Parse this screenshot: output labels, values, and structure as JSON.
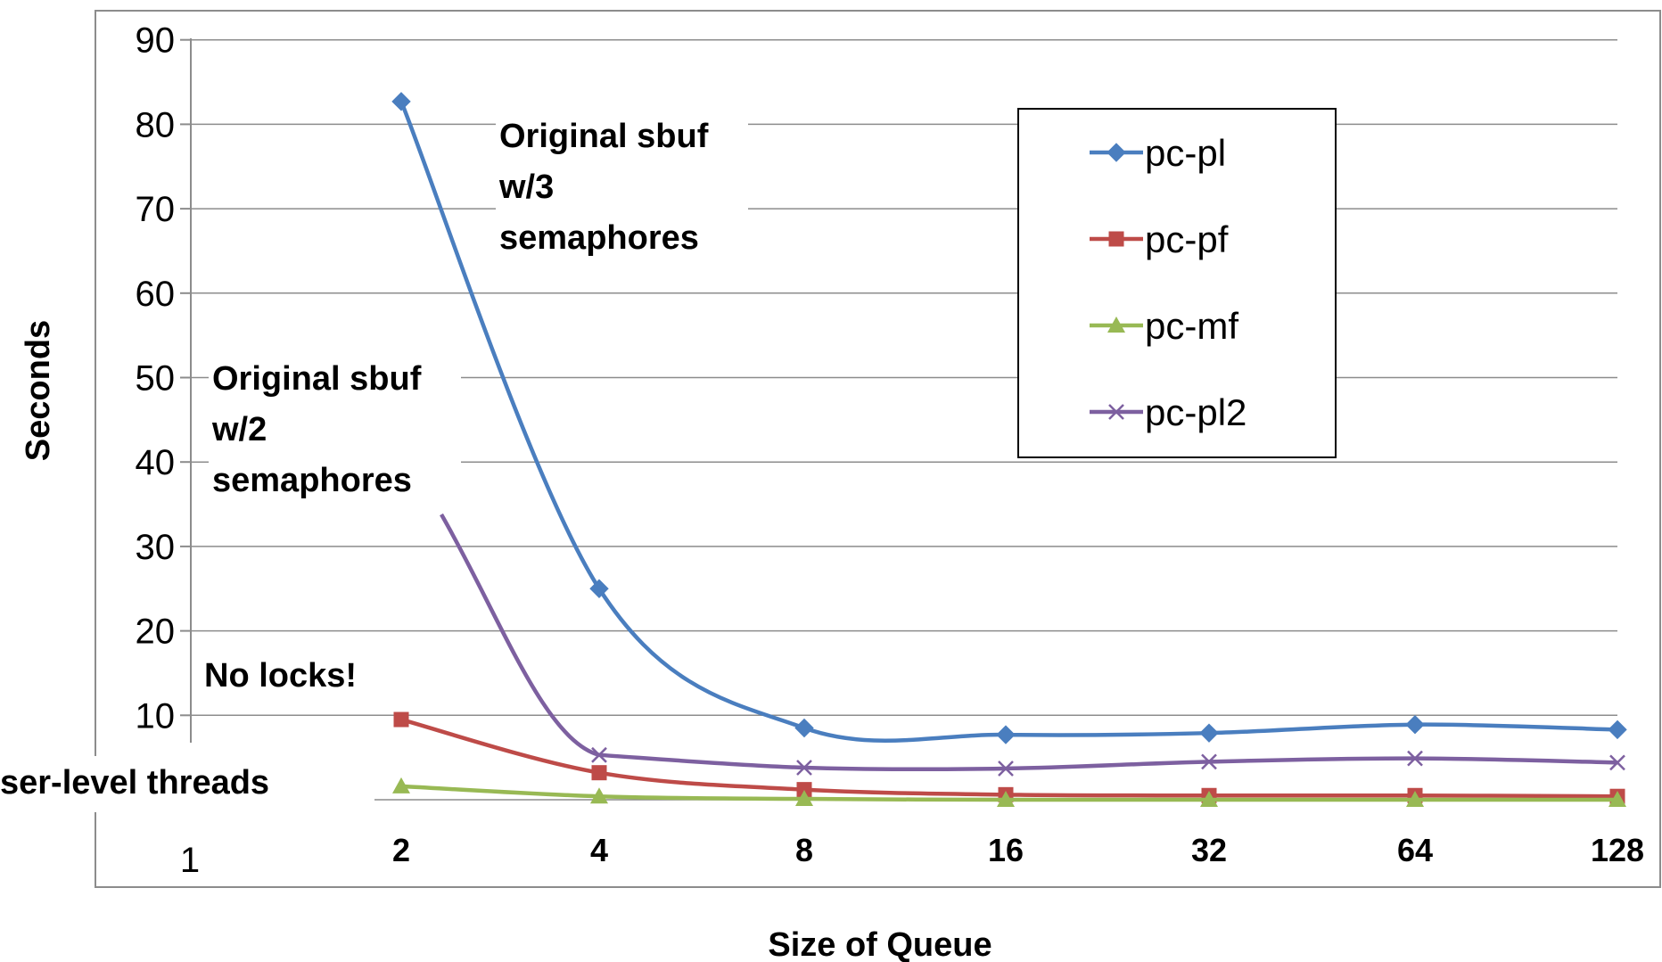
{
  "chart_data": {
    "type": "line",
    "title": "",
    "xlabel": "Size of Queue",
    "ylabel": "Seconds",
    "categories": [
      "2",
      "4",
      "8",
      "16",
      "32",
      "64",
      "128"
    ],
    "extra_x_tick": "1",
    "ylim": [
      0,
      90
    ],
    "yticks": [
      "10",
      "20",
      "30",
      "40",
      "50",
      "60",
      "70",
      "80",
      "90"
    ],
    "grid": true,
    "legend_position": "top-right",
    "series": [
      {
        "name": "pc-pl",
        "color": "#4a7ebf",
        "marker": "diamond",
        "values": [
          82.7,
          25.0,
          8.5,
          7.7,
          7.9,
          8.9,
          8.3
        ]
      },
      {
        "name": "pc-pf",
        "color": "#be4b48",
        "marker": "square",
        "values": [
          9.5,
          3.2,
          1.2,
          0.6,
          0.5,
          0.5,
          0.4
        ]
      },
      {
        "name": "pc-mf",
        "color": "#98b954",
        "marker": "triangle",
        "values": [
          1.6,
          0.4,
          0.1,
          0.0,
          0.0,
          0.0,
          0.0
        ]
      },
      {
        "name": "pc-pl2",
        "color": "#7d60a0",
        "marker": "x",
        "values": [
          null,
          5.3,
          3.8,
          3.7,
          4.5,
          4.9,
          4.4
        ]
      }
    ],
    "annotations": [
      {
        "id": "sbuf3",
        "lines": [
          "Original sbuf",
          "w/3",
          "semaphores"
        ]
      },
      {
        "id": "sbuf2",
        "lines": [
          "Original sbuf",
          "w/2",
          "semaphores"
        ]
      },
      {
        "id": "nolocks",
        "lines": [
          "No locks!"
        ]
      },
      {
        "id": "userlevel",
        "lines": [
          "ser-level threads"
        ]
      }
    ]
  }
}
